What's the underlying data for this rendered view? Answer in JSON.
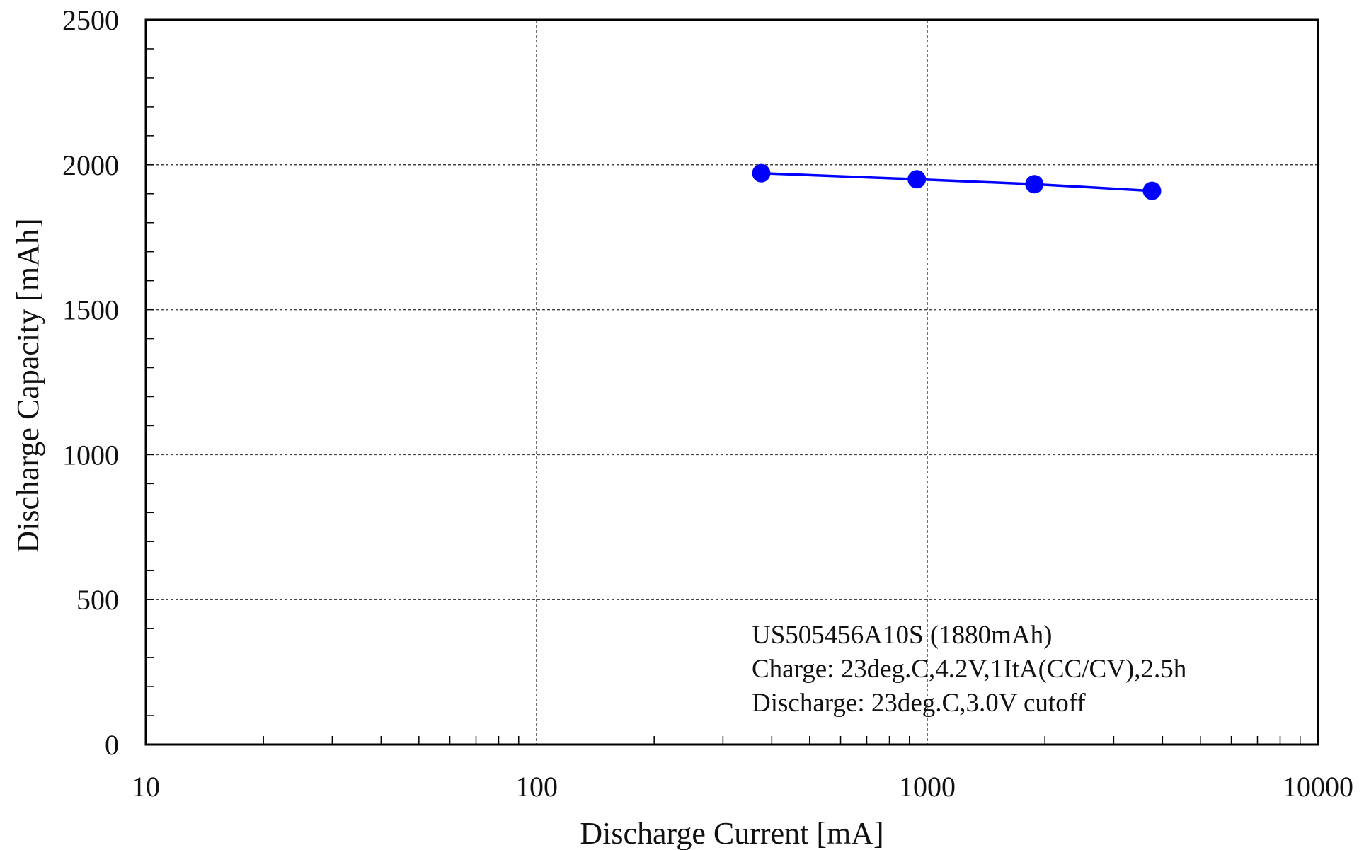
{
  "chart_data": {
    "type": "line",
    "x_scale": "log",
    "xlim": [
      10,
      10000
    ],
    "ylim": [
      0,
      2500
    ],
    "xlabel": "Discharge Current [mA]",
    "ylabel": "Discharge Capacity [mAh]",
    "x_ticks": [
      "10",
      "100",
      "1000",
      "10000"
    ],
    "y_ticks": [
      "0",
      "500",
      "1000",
      "1500",
      "2000",
      "2500"
    ],
    "grid": true,
    "series": [
      {
        "color": "#0000ff",
        "marker": "circle",
        "x": [
          376,
          940,
          1880,
          3760
        ],
        "y": [
          1971,
          1950,
          1933,
          1910
        ]
      }
    ],
    "annotation": [
      "US505456A10S (1880mAh)",
      "Charge: 23deg.C,4.2V,1ItA(CC/CV),2.5h",
      "Discharge: 23deg.C,3.0V cutoff"
    ]
  }
}
